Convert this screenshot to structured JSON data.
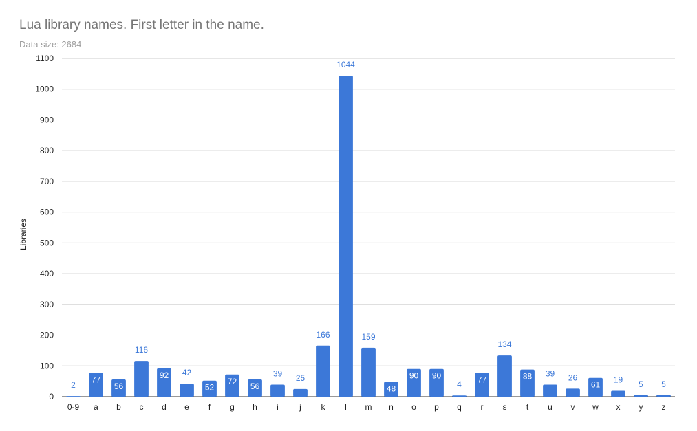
{
  "chart_data": {
    "type": "bar",
    "title": "Lua library names. First letter in the name.",
    "subtitle": "Data size: 2684",
    "xlabel": "",
    "ylabel": "Libraries",
    "ylim": [
      0,
      1100
    ],
    "yticks": [
      0,
      100,
      200,
      300,
      400,
      500,
      600,
      700,
      800,
      900,
      1000,
      1100
    ],
    "grid": true,
    "bar_color": "#3c78d8",
    "label_color_outside": "#3c78d8",
    "label_color_inside": "#ffffff",
    "categories": [
      "0-9",
      "a",
      "b",
      "c",
      "d",
      "e",
      "f",
      "g",
      "h",
      "i",
      "j",
      "k",
      "l",
      "m",
      "n",
      "o",
      "p",
      "q",
      "r",
      "s",
      "t",
      "u",
      "v",
      "w",
      "x",
      "y",
      "z"
    ],
    "values": [
      2,
      77,
      56,
      116,
      92,
      42,
      52,
      72,
      56,
      39,
      25,
      166,
      1044,
      159,
      48,
      90,
      90,
      4,
      77,
      134,
      88,
      39,
      26,
      61,
      19,
      5,
      5
    ]
  }
}
